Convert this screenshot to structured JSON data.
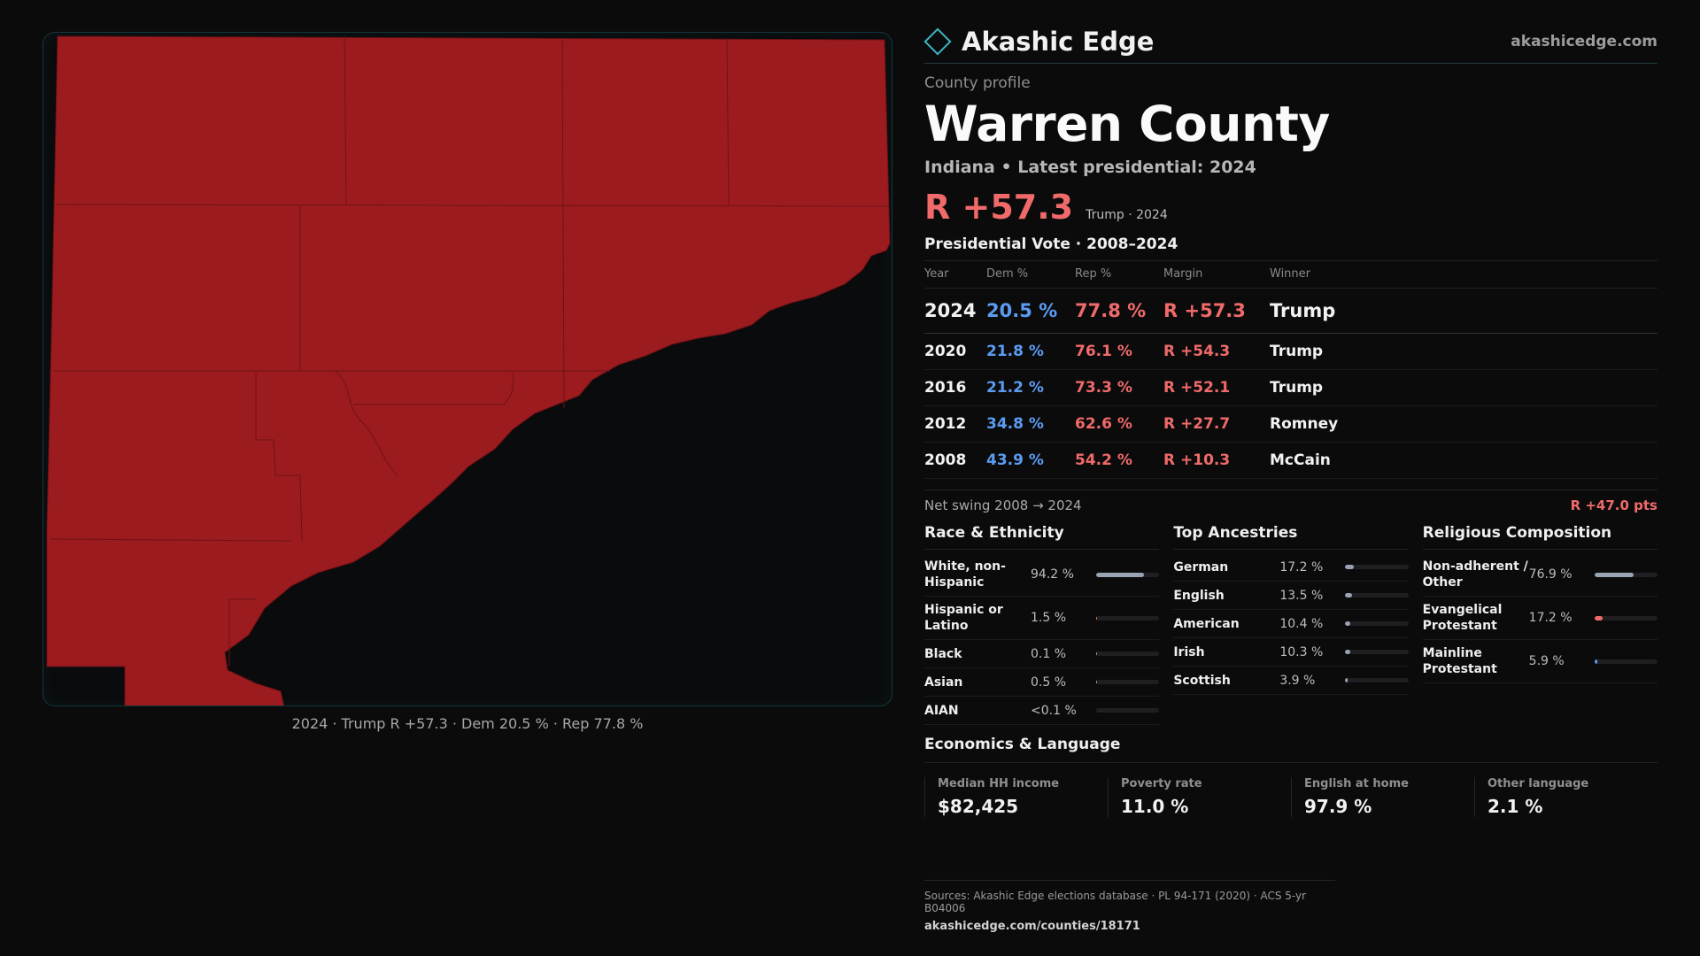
{
  "brand": {
    "name": "Akashic Edge",
    "site": "akashicedge.com"
  },
  "profile": {
    "kicker": "County profile",
    "title": "Warren County",
    "subtitle": "Indiana • Latest presidential: 2024",
    "headline_margin": "R +57.3",
    "headline_note": "Trump · 2024"
  },
  "map": {
    "caption": "2024 · Trump R +57.3 · Dem 20.5 % · Rep 77.8 %",
    "fill_color": "#9c1b1f",
    "border_color": "#14363a"
  },
  "votes": {
    "title": "Presidential Vote · 2008–2024",
    "headers": [
      "Year",
      "Dem %",
      "Rep %",
      "Margin",
      "Winner"
    ],
    "rows": [
      {
        "year": "2024",
        "dem": "20.5 %",
        "rep": "77.8 %",
        "margin": "R +57.3",
        "winner": "Trump"
      },
      {
        "year": "2020",
        "dem": "21.8 %",
        "rep": "76.1 %",
        "margin": "R +54.3",
        "winner": "Trump"
      },
      {
        "year": "2016",
        "dem": "21.2 %",
        "rep": "73.3 %",
        "margin": "R +52.1",
        "winner": "Trump"
      },
      {
        "year": "2012",
        "dem": "34.8 %",
        "rep": "62.6 %",
        "margin": "R +27.7",
        "winner": "Romney"
      },
      {
        "year": "2008",
        "dem": "43.9 %",
        "rep": "54.2 %",
        "margin": "R +10.3",
        "winner": "McCain"
      }
    ],
    "swing_label": "Net swing 2008 → 2024",
    "swing_value": "R +47.0 pts"
  },
  "race": {
    "title": "Race & Ethnicity",
    "items": [
      {
        "label": "White, non-Hispanic",
        "value": "94.2 %",
        "share": 0.942,
        "color": "#9aa3b3"
      },
      {
        "label": "Hispanic or Latino",
        "value": "1.5 %",
        "share": 0.015,
        "color": "#d98b4a"
      },
      {
        "label": "Black",
        "value": "0.1 %",
        "share": 0.001,
        "color": "#9aa3b3"
      },
      {
        "label": "Asian",
        "value": "0.5 %",
        "share": 0.005,
        "color": "#9aa3b3"
      },
      {
        "label": "AIAN",
        "value": "<0.1 %",
        "share": 0.0,
        "color": "#9aa3b3"
      }
    ]
  },
  "ancestry": {
    "title": "Top Ancestries",
    "items": [
      {
        "label": "German",
        "value": "17.2 %",
        "share": 0.172
      },
      {
        "label": "English",
        "value": "13.5 %",
        "share": 0.135
      },
      {
        "label": "American",
        "value": "10.4 %",
        "share": 0.104
      },
      {
        "label": "Irish",
        "value": "10.3 %",
        "share": 0.103
      },
      {
        "label": "Scottish",
        "value": "3.9 %",
        "share": 0.039
      }
    ]
  },
  "religion": {
    "title": "Religious Composition",
    "items": [
      {
        "label": "Non-adherent / Other",
        "value": "76.9 %",
        "share": 0.769,
        "color": "#9aa3b3"
      },
      {
        "label": "Evangelical Protestant",
        "value": "17.2 %",
        "share": 0.172,
        "color": "#f06a6a"
      },
      {
        "label": "Mainline Protestant",
        "value": "5.9 %",
        "share": 0.059,
        "color": "#5b9cf2"
      }
    ]
  },
  "economics": {
    "title": "Economics & Language",
    "items": [
      {
        "label": "Median HH income",
        "value": "$82,425"
      },
      {
        "label": "Poverty rate",
        "value": "11.0 %"
      },
      {
        "label": "English at home",
        "value": "97.9 %"
      },
      {
        "label": "Other language",
        "value": "2.1 %"
      }
    ]
  },
  "footer": {
    "sources": "Sources: Akashic Edge elections database · PL 94-171 (2020) · ACS 5-yr B04006",
    "url": "akashicedge.com/counties/18171"
  }
}
